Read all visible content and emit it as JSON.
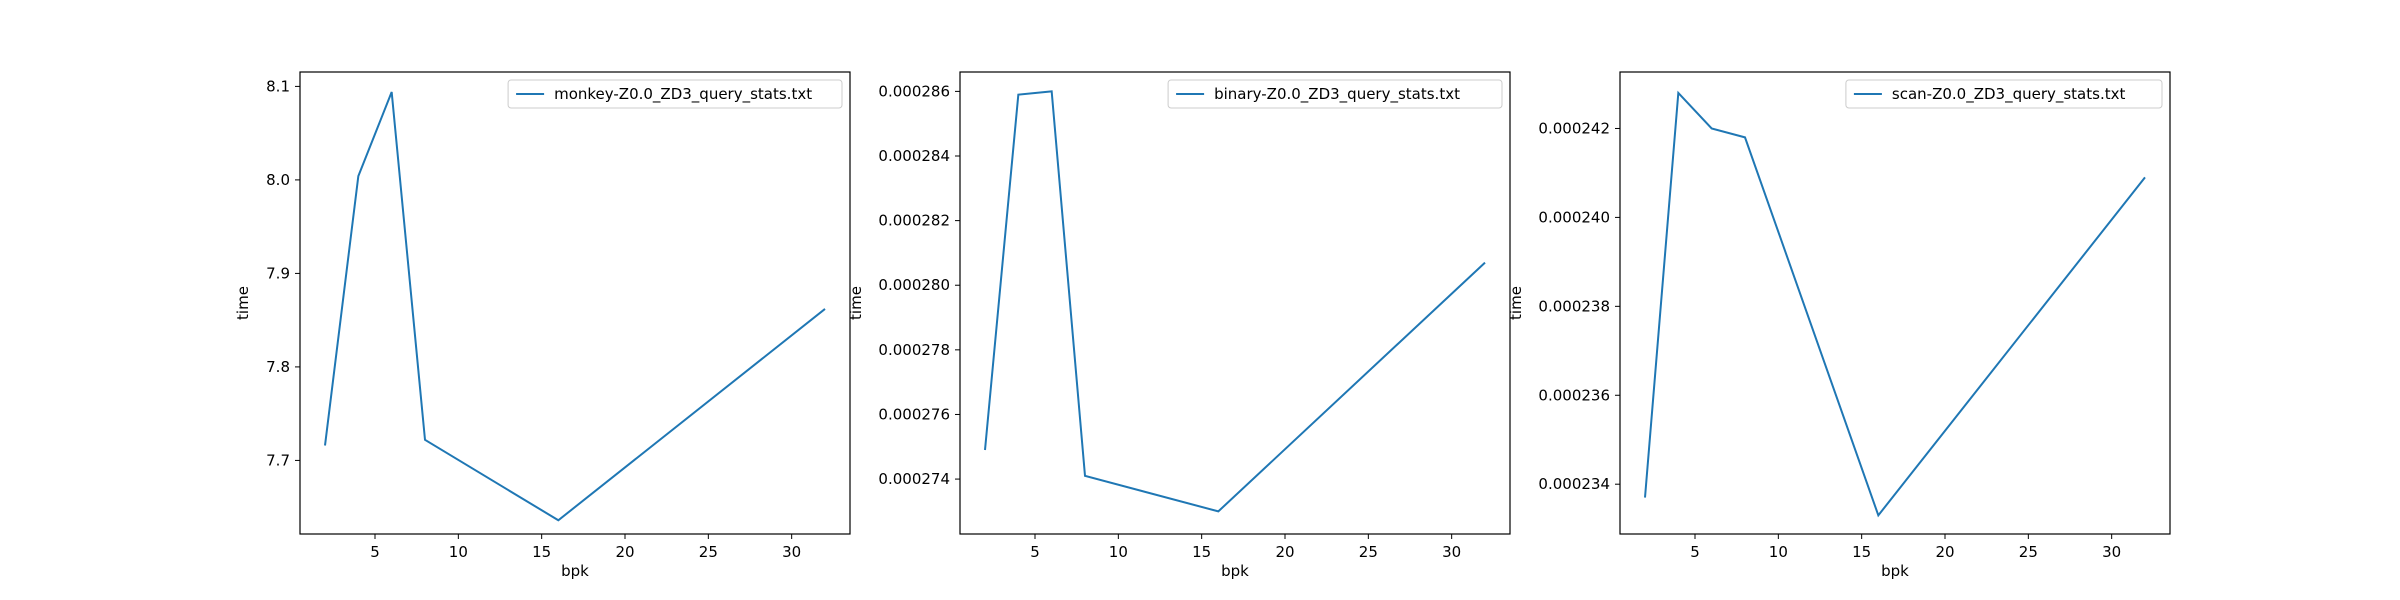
{
  "colors": {
    "background": "#ffffff",
    "axes": "#000000",
    "line": "#1f77b4",
    "legend_border": "#cccccc"
  },
  "chart_data": [
    {
      "type": "line",
      "title": "",
      "xlabel": "bpk",
      "ylabel": "time",
      "xlim": [
        0.5,
        33.5
      ],
      "ylim": [
        7.6213,
        8.1154
      ],
      "xticks": [
        5,
        10,
        15,
        20,
        25,
        30
      ],
      "xtick_labels": [
        "5",
        "10",
        "15",
        "20",
        "25",
        "30"
      ],
      "yticks": [
        7.7,
        7.8,
        7.9,
        8.0,
        8.1
      ],
      "ytick_labels": [
        "7.7",
        "7.8",
        "7.9",
        "8.0",
        "8.1"
      ],
      "grid": false,
      "legend_position": "upper right",
      "series": [
        {
          "name": "monkey-Z0.0_ZD3_query_stats.txt",
          "x": [
            2,
            4,
            6,
            8,
            16,
            32
          ],
          "y": [
            7.716,
            8.004,
            8.094,
            7.722,
            7.636,
            7.862
          ]
        }
      ]
    },
    {
      "type": "line",
      "title": "",
      "xlabel": "bpk",
      "ylabel": "time",
      "xlim": [
        0.5,
        33.5
      ],
      "ylim": [
        0.0002723,
        0.0002866
      ],
      "xticks": [
        5,
        10,
        15,
        20,
        25,
        30
      ],
      "xtick_labels": [
        "5",
        "10",
        "15",
        "20",
        "25",
        "30"
      ],
      "yticks": [
        0.000274,
        0.000276,
        0.000278,
        0.00028,
        0.000282,
        0.000284,
        0.000286
      ],
      "ytick_labels": [
        "0.000274",
        "0.000276",
        "0.000278",
        "0.000280",
        "0.000282",
        "0.000284",
        "0.000286"
      ],
      "grid": false,
      "legend_position": "upper right",
      "series": [
        {
          "name": "binary-Z0.0_ZD3_query_stats.txt",
          "x": [
            2,
            4,
            6,
            8,
            16,
            32
          ],
          "y": [
            0.0002749,
            0.0002859,
            0.000286,
            0.0002741,
            0.000273,
            0.0002807
          ]
        }
      ]
    },
    {
      "type": "line",
      "title": "",
      "xlabel": "bpk",
      "ylabel": "time",
      "xlim": [
        0.5,
        33.5
      ],
      "ylim": [
        0.00023288,
        0.00024327
      ],
      "xticks": [
        5,
        10,
        15,
        20,
        25,
        30
      ],
      "xtick_labels": [
        "5",
        "10",
        "15",
        "20",
        "25",
        "30"
      ],
      "yticks": [
        0.000234,
        0.000236,
        0.000238,
        0.00024,
        0.000242
      ],
      "ytick_labels": [
        "0.000234",
        "0.000236",
        "0.000238",
        "0.000240",
        "0.000242"
      ],
      "grid": false,
      "legend_position": "upper right",
      "series": [
        {
          "name": "scan-Z0.0_ZD3_query_stats.txt",
          "x": [
            2,
            4,
            6,
            8,
            16,
            32
          ],
          "y": [
            0.0002337,
            0.0002428,
            0.000242,
            0.0002418,
            0.0002333,
            0.0002409
          ]
        }
      ]
    }
  ]
}
